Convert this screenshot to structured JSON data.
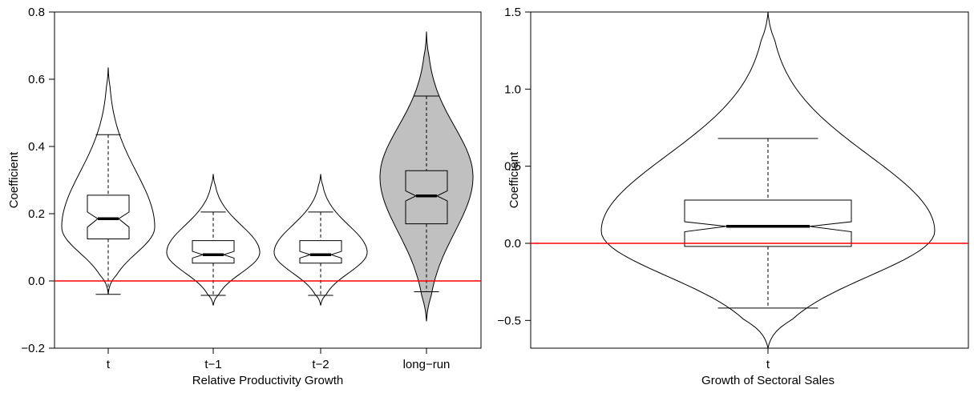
{
  "chart_data": [
    {
      "type": "violin",
      "xlabel": "Relative Productivity Growth",
      "ylabel": "Coefficient",
      "ylim": [
        -0.2,
        0.8
      ],
      "yticks": [
        -0.2,
        0.0,
        0.2,
        0.4,
        0.6,
        0.8
      ],
      "ytick_labels": [
        "−0.2",
        "0.0",
        "0.2",
        "0.4",
        "0.6",
        "0.8"
      ],
      "reference_line": 0.0,
      "reference_color": "#ff0000",
      "categories": [
        "t",
        "t−1",
        "t−2",
        "long−run"
      ],
      "series": [
        {
          "whisker_low": -0.04,
          "q1": 0.125,
          "median": 0.185,
          "q3": 0.255,
          "whisker_high": 0.435,
          "min": -0.04,
          "max": 0.635,
          "mode": 0.16,
          "notch": [
            0.16,
            0.205
          ],
          "fill": "#ffffff"
        },
        {
          "whisker_low": -0.043,
          "q1": 0.053,
          "median": 0.078,
          "q3": 0.12,
          "whisker_high": 0.205,
          "min": -0.073,
          "max": 0.318,
          "mode": 0.085,
          "notch": [
            0.068,
            0.088
          ],
          "fill": "#ffffff"
        },
        {
          "whisker_low": -0.043,
          "q1": 0.053,
          "median": 0.078,
          "q3": 0.12,
          "whisker_high": 0.205,
          "min": -0.073,
          "max": 0.318,
          "mode": 0.085,
          "notch": [
            0.068,
            0.088
          ],
          "fill": "#ffffff"
        },
        {
          "whisker_low": -0.032,
          "q1": 0.17,
          "median": 0.253,
          "q3": 0.328,
          "whisker_high": 0.55,
          "min": -0.12,
          "max": 0.742,
          "mode": 0.31,
          "notch": [
            0.238,
            0.268
          ],
          "fill": "#c0c0c0"
        }
      ]
    },
    {
      "type": "violin",
      "xlabel": "Growth of Sectoral Sales",
      "ylabel": "Coefficient",
      "ylim": [
        -0.68,
        1.5
      ],
      "yticks": [
        -0.5,
        0.0,
        0.5,
        1.0,
        1.5
      ],
      "ytick_labels": [
        "−0.5",
        "0.0",
        "0.5",
        "1.0",
        "1.5"
      ],
      "reference_line": 0.0,
      "reference_color": "#ff0000",
      "categories": [
        "t"
      ],
      "series": [
        {
          "whisker_low": -0.42,
          "q1": -0.02,
          "median": 0.11,
          "q3": 0.28,
          "whisker_high": 0.68,
          "min": -0.68,
          "max": 1.5,
          "mode": 0.08,
          "notch": [
            0.075,
            0.14
          ],
          "fill": "#ffffff"
        }
      ]
    }
  ]
}
